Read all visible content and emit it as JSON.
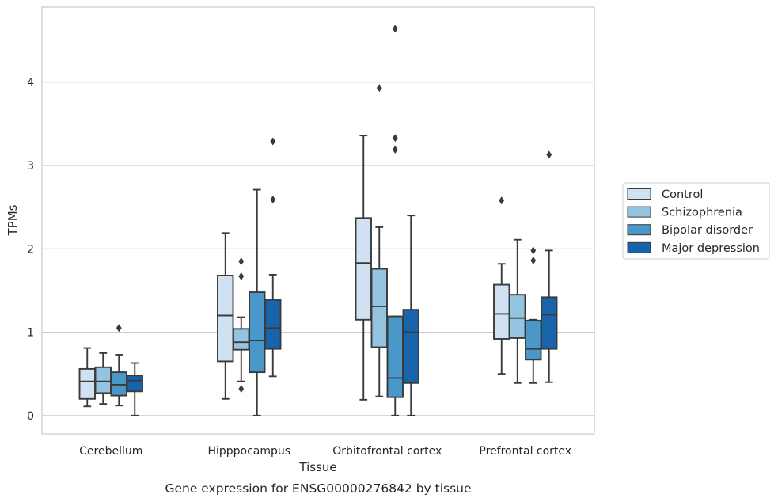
{
  "caption": "Gene expression for ENSG00000276842 by tissue",
  "chart_data": {
    "type": "box",
    "xlabel": "Tissue",
    "ylabel": "TPMs",
    "ylim": [
      -0.22,
      4.9
    ],
    "yticks": [
      0,
      1,
      2,
      3,
      4
    ],
    "grid": "horizontal",
    "legend_position": "right",
    "categories": [
      "Cerebellum",
      "Hipppocampus",
      "Orbitofrontal cortex",
      "Prefrontal cortex"
    ],
    "series": [
      {
        "name": "Control",
        "color": "#d0e1f2",
        "boxes": [
          {
            "whislo": 0.11,
            "q1": 0.2,
            "med": 0.41,
            "q3": 0.56,
            "whishi": 0.81,
            "fliers": []
          },
          {
            "whislo": 0.2,
            "q1": 0.65,
            "med": 1.2,
            "q3": 1.68,
            "whishi": 2.19,
            "fliers": []
          },
          {
            "whislo": 0.19,
            "q1": 1.15,
            "med": 1.83,
            "q3": 2.37,
            "whishi": 3.36,
            "fliers": []
          },
          {
            "whislo": 0.5,
            "q1": 0.92,
            "med": 1.22,
            "q3": 1.57,
            "whishi": 1.82,
            "fliers": [
              2.58
            ]
          }
        ]
      },
      {
        "name": "Schizophrenia",
        "color": "#94c4df",
        "boxes": [
          {
            "whislo": 0.14,
            "q1": 0.27,
            "med": 0.41,
            "q3": 0.58,
            "whishi": 0.75,
            "fliers": []
          },
          {
            "whislo": 0.41,
            "q1": 0.79,
            "med": 0.88,
            "q3": 1.04,
            "whishi": 1.18,
            "fliers": [
              1.85,
              1.67,
              0.32
            ]
          },
          {
            "whislo": 0.23,
            "q1": 0.82,
            "med": 1.31,
            "q3": 1.76,
            "whishi": 2.26,
            "fliers": [
              3.93
            ]
          },
          {
            "whislo": 0.39,
            "q1": 0.93,
            "med": 1.17,
            "q3": 1.45,
            "whishi": 2.11,
            "fliers": []
          }
        ]
      },
      {
        "name": "Bipolar disorder",
        "color": "#4a98c9",
        "boxes": [
          {
            "whislo": 0.12,
            "q1": 0.24,
            "med": 0.37,
            "q3": 0.52,
            "whishi": 0.73,
            "fliers": [
              1.05
            ]
          },
          {
            "whislo": 0.0,
            "q1": 0.52,
            "med": 0.9,
            "q3": 1.48,
            "whishi": 2.71,
            "fliers": []
          },
          {
            "whislo": 0.0,
            "q1": 0.22,
            "med": 0.45,
            "q3": 1.19,
            "whishi": 1.19,
            "fliers": [
              4.64,
              3.33,
              3.19
            ]
          },
          {
            "whislo": 0.39,
            "q1": 0.67,
            "med": 0.8,
            "q3": 1.14,
            "whishi": 1.15,
            "fliers": [
              1.98,
              1.86
            ]
          }
        ]
      },
      {
        "name": "Major depression",
        "color": "#1764ab",
        "boxes": [
          {
            "whislo": 0.0,
            "q1": 0.29,
            "med": 0.42,
            "q3": 0.48,
            "whishi": 0.63,
            "fliers": []
          },
          {
            "whislo": 0.47,
            "q1": 0.8,
            "med": 1.05,
            "q3": 1.39,
            "whishi": 1.69,
            "fliers": [
              3.29,
              2.59
            ]
          },
          {
            "whislo": 0.0,
            "q1": 0.39,
            "med": 1.0,
            "q3": 1.27,
            "whishi": 2.4,
            "fliers": []
          },
          {
            "whislo": 0.4,
            "q1": 0.8,
            "med": 1.21,
            "q3": 1.42,
            "whishi": 1.98,
            "fliers": [
              3.13
            ]
          }
        ]
      }
    ]
  }
}
